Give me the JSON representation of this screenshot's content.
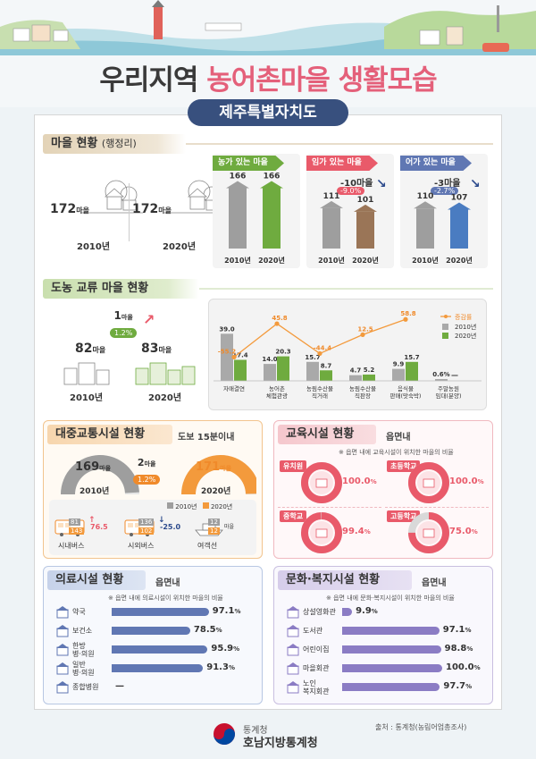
{
  "title": {
    "part1": "우리지역",
    "part2": "농어촌마을 생활모습"
  },
  "region": "제주특별자치도",
  "village": {
    "heading": "마을 현황",
    "heading_sub": "(행정리)",
    "years": [
      "2010년",
      "2020년"
    ],
    "counts": [
      "172",
      "172"
    ],
    "unit": "마을",
    "farm": {
      "title": "농가 있는 마을",
      "values": [
        "166",
        "166"
      ],
      "color": "#6fab3f"
    },
    "forest": {
      "title": "임가 있는 마을",
      "change": "-10",
      "change_unit": "마을",
      "pct": "-9.0%",
      "values": [
        "111",
        "101"
      ],
      "color": "#9a7557"
    },
    "fish": {
      "title": "어가 있는 마을",
      "change": "-3",
      "change_unit": "마을",
      "pct": "-2.7%",
      "values": [
        "110",
        "107"
      ],
      "color": "#4a7cc1"
    }
  },
  "exchange": {
    "heading": "도농 교류 마을 현황",
    "values": [
      "82",
      "83"
    ],
    "unit": "마을",
    "years": [
      "2010년",
      "2020년"
    ],
    "change": "1",
    "change_unit": "마을",
    "pct": "1.2%",
    "legend": [
      "증감률",
      "2010년",
      "2020년"
    ]
  },
  "chart_data": {
    "type": "bar",
    "categories": [
      "자매결연",
      "농어촌 체험관광",
      "농림수산물 직거래",
      "농림수산물 직판장",
      "음식물 판매(맛숙박)",
      "주말농원 임대(분양)"
    ],
    "series": [
      {
        "name": "2010년",
        "values": [
          39.0,
          14.0,
          15.7,
          4.7,
          9.9,
          0.6
        ]
      },
      {
        "name": "2020년",
        "values": [
          17.4,
          20.3,
          8.7,
          5.2,
          15.7,
          null
        ]
      },
      {
        "name": "증감률",
        "values": [
          -55.2,
          45.8,
          -44.4,
          12.5,
          58.8,
          null
        ]
      }
    ],
    "value_labels": [
      [
        "39.0",
        "14.0",
        "15.7",
        "4.7",
        "9.9",
        "0.6%"
      ],
      [
        "17.4",
        "20.3",
        "8.7",
        "5.2",
        "15.7",
        "—"
      ],
      [
        "-55.2",
        "45.8",
        "-44.4",
        "12.5",
        "58.8",
        ""
      ]
    ]
  },
  "transport": {
    "heading": "대중교통시설 현황",
    "tag": "도보 15분이내",
    "values": [
      "169",
      "171"
    ],
    "unit": "마을",
    "years": [
      "2010년",
      "2020년"
    ],
    "change": "2",
    "change_unit": "마을",
    "pct": "1.2%",
    "legend": [
      "2010년",
      "2020년"
    ],
    "items": [
      {
        "label": "시내버스",
        "v2010": "81",
        "v2020": "143",
        "pct": "76.5",
        "dir": "up"
      },
      {
        "label": "시외버스",
        "v2010": "136",
        "v2020": "102",
        "pct": "-25.0",
        "dir": "down"
      },
      {
        "label": "여객선",
        "v2010": "12",
        "v2020": "12",
        "unit": "마을",
        "pct": "",
        "dir": ""
      }
    ]
  },
  "education": {
    "heading": "교육시설 현황",
    "tag": "읍면내",
    "note": "※ 읍면 내에 교육시설이 위치한 마을의 비율",
    "items": [
      {
        "label": "유치원",
        "value": "100.0",
        "pct": 100.0
      },
      {
        "label": "초등학교",
        "value": "100.0",
        "pct": 100.0
      },
      {
        "label": "중학교",
        "value": "99.4",
        "pct": 99.4
      },
      {
        "label": "고등학교",
        "value": "75.0",
        "pct": 75.0
      }
    ]
  },
  "medical": {
    "heading": "의료시설 현황",
    "tag": "읍면내",
    "note": "※ 읍면 내에 의료시설이 위치한 마을의 비율",
    "items": [
      {
        "label": "약국",
        "value": "97.1",
        "pct": 97.1
      },
      {
        "label": "보건소",
        "value": "78.5",
        "pct": 78.5
      },
      {
        "label": "한방 병·의원",
        "value": "95.9",
        "pct": 95.9
      },
      {
        "label": "일반 병·의원",
        "value": "91.3",
        "pct": 91.3
      },
      {
        "label": "종합병원",
        "value": "—",
        "pct": 0
      }
    ]
  },
  "culture": {
    "heading": "문화·복지시설 현황",
    "tag": "읍면내",
    "note": "※ 읍면 내에 문화·복지시설이 위치한 마을의 비율",
    "items": [
      {
        "label": "상설영화관",
        "value": "9.9",
        "pct": 9.9
      },
      {
        "label": "도서관",
        "value": "97.1",
        "pct": 97.1
      },
      {
        "label": "어린이집",
        "value": "98.8",
        "pct": 98.8
      },
      {
        "label": "마을회관",
        "value": "100.0",
        "pct": 100.0
      },
      {
        "label": "노인 복지회관",
        "value": "97.7",
        "pct": 97.7
      }
    ]
  },
  "percent_unit": "%",
  "source": "출처 : 통계청(농림어업총조사)",
  "org": {
    "line1": "통계청",
    "line2": "호남지방통계청"
  },
  "colors": {
    "title_accent": "#e4607a",
    "region_bg": "#38507e",
    "green": "#6fab3f",
    "gray": "#9e9e9e",
    "orange": "#f39a3c",
    "pink": "#e95a6a",
    "blue": "#6077b3"
  }
}
